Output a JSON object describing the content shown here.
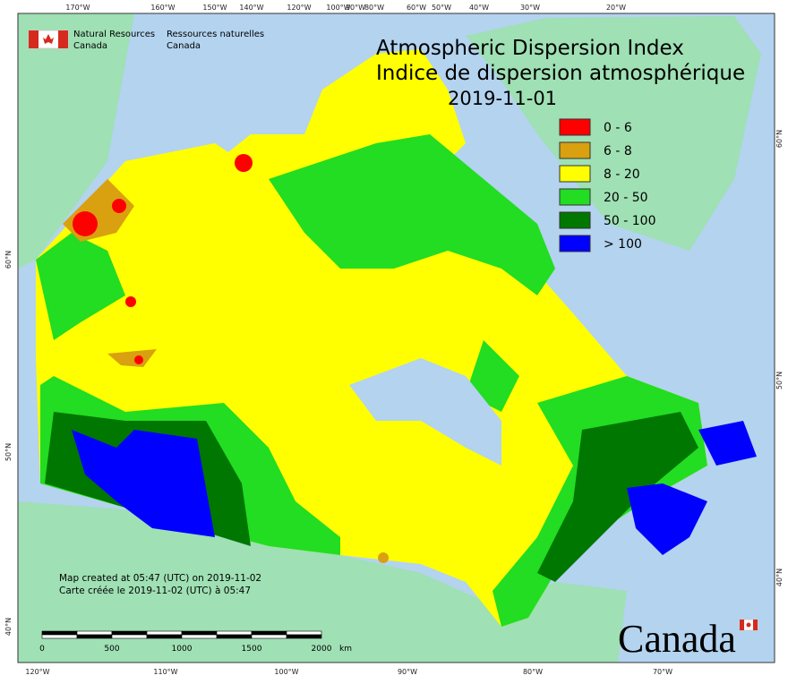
{
  "header": {
    "title": [
      "Atmospheric Dispersion Index",
      "Indice de dispersion atmosphérique"
    ],
    "date": "2019-11-01",
    "agency": {
      "en": [
        "Natural Resources",
        "Canada"
      ],
      "fr": [
        "Ressources naturelles",
        "Canada"
      ]
    }
  },
  "legend": [
    {
      "label": "0 - 6",
      "color": "#ff0000"
    },
    {
      "label": "6 - 8",
      "color": "#d9a010"
    },
    {
      "label": "8 - 20",
      "color": "#ffff00"
    },
    {
      "label": "20 - 50",
      "color": "#22dd22"
    },
    {
      "label": "50 - 100",
      "color": "#007700"
    },
    {
      "label": "> 100",
      "color": "#0000ff"
    }
  ],
  "notes": [
    "Map created at 05:47 (UTC) on 2019-11-02",
    "Carte créée le 2019-11-02 (UTC) à 05:47"
  ],
  "scale_bar": {
    "labels": [
      "0",
      "500",
      "1000",
      "1500",
      "2000"
    ],
    "unit": "km"
  },
  "graticule": {
    "top": [
      "170°W",
      "160°W",
      "150°W",
      "140°W",
      "120°W",
      "100°W",
      "90°W",
      "80°W",
      "60°W",
      "50°W",
      "40°W",
      "30°W",
      "20°W"
    ],
    "bottom": [
      "120°W",
      "110°W",
      "100°W",
      "90°W",
      "80°W",
      "70°W"
    ],
    "left": [
      "60°N",
      "50°N",
      "40°N"
    ],
    "right": [
      "60°N",
      "50°N",
      "40°N"
    ]
  },
  "wordmark": "Canada"
}
